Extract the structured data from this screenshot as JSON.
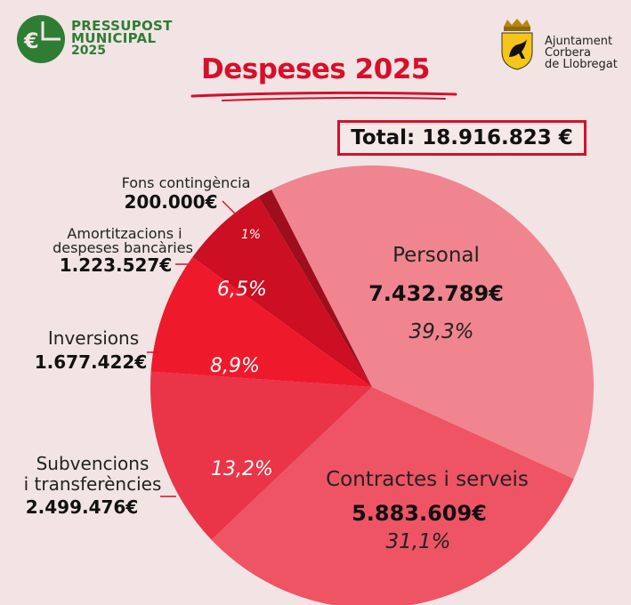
{
  "header": {
    "brand_line1": "PRESSUPOST",
    "brand_line2": "MUNICIPAL",
    "brand_line3": "2025",
    "council_line1": "Ajuntament",
    "council_line2": "Corbera",
    "council_line3": "de Llobregat"
  },
  "title": "Despeses 2025",
  "total_label": "Total: 18.916.823 €",
  "colors": {
    "brand_green": "#2e7d32",
    "title_red": "#d6102b",
    "background": "#f2e4e4"
  },
  "chart_data": {
    "type": "pie",
    "title": "Despeses 2025",
    "total": 18916823,
    "slices": [
      {
        "name": "Personal",
        "value": 7432789,
        "value_label": "7.432.789€",
        "percent": 39.3,
        "percent_label": "39,3%",
        "color": "#f0858f"
      },
      {
        "name": "Contractes i serveis",
        "value": 5883609,
        "value_label": "5.883.609€",
        "percent": 31.1,
        "percent_label": "31,1%",
        "color": "#ef5464"
      },
      {
        "name": "Subvencions i transferències",
        "name_lines": [
          "Subvencions",
          "i transferències"
        ],
        "value": 2499476,
        "value_label": "2.499.476€",
        "percent": 13.2,
        "percent_label": "13,2%",
        "color": "#ea3447"
      },
      {
        "name": "Inversions",
        "name_lines": [
          "Inversions"
        ],
        "value": 1677422,
        "value_label": "1.677.422€",
        "percent": 8.9,
        "percent_label": "8,9%",
        "color": "#ee1a2c"
      },
      {
        "name": "Amortitzacions i despeses bancàries",
        "name_lines": [
          "Amortitzacions i",
          "despeses bancàries"
        ],
        "value": 1223527,
        "value_label": "1.223.527€",
        "percent": 6.5,
        "percent_label": "6,5%",
        "color": "#cc0f22"
      },
      {
        "name": "Fons contingència",
        "name_lines": [
          "Fons contingència"
        ],
        "value": 200000,
        "value_label": "200.000€",
        "percent": 1,
        "percent_label": "1%",
        "color": "#9e0e1c"
      }
    ]
  }
}
